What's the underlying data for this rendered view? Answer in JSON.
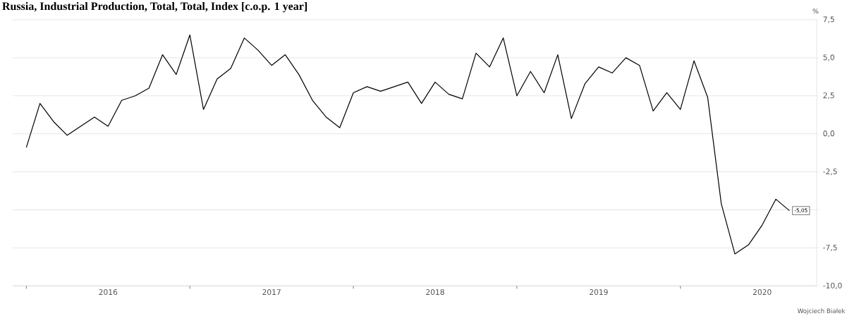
{
  "chart_data": {
    "type": "line",
    "title": "Russia, Industrial Production, Total, Total, Index [c.o.p. 1 year]",
    "ylabel": "%",
    "x": [
      "2016-01",
      "2016-02",
      "2016-03",
      "2016-04",
      "2016-05",
      "2016-06",
      "2016-07",
      "2016-08",
      "2016-09",
      "2016-10",
      "2016-11",
      "2016-12",
      "2017-01",
      "2017-02",
      "2017-03",
      "2017-04",
      "2017-05",
      "2017-06",
      "2017-07",
      "2017-08",
      "2017-09",
      "2017-10",
      "2017-11",
      "2017-12",
      "2018-01",
      "2018-02",
      "2018-03",
      "2018-04",
      "2018-05",
      "2018-06",
      "2018-07",
      "2018-08",
      "2018-09",
      "2018-10",
      "2018-11",
      "2018-12",
      "2019-01",
      "2019-02",
      "2019-03",
      "2019-04",
      "2019-05",
      "2019-06",
      "2019-07",
      "2019-08",
      "2019-09",
      "2019-10",
      "2019-11",
      "2019-12",
      "2020-01",
      "2020-02",
      "2020-03",
      "2020-04",
      "2020-05",
      "2020-06",
      "2020-07",
      "2020-08",
      "2020-09"
    ],
    "series": [
      {
        "color": "#000000",
        "values": [
          -0.9,
          2.0,
          0.8,
          -0.1,
          0.5,
          1.1,
          0.5,
          2.2,
          2.5,
          3.0,
          5.2,
          3.9,
          6.5,
          1.6,
          3.6,
          4.3,
          6.3,
          5.5,
          4.5,
          5.2,
          3.9,
          2.2,
          1.1,
          0.4,
          2.7,
          3.1,
          2.8,
          3.1,
          3.4,
          2.0,
          3.4,
          2.6,
          2.3,
          5.3,
          4.4,
          6.3,
          2.5,
          4.1,
          2.7,
          5.2,
          1.0,
          3.3,
          4.4,
          4.0,
          5.0,
          4.5,
          1.5,
          2.7,
          1.6,
          4.8,
          2.4,
          -4.6,
          -7.9,
          -7.3,
          -6.0,
          -4.3,
          -5.05
        ],
        "value_labels": [
          null,
          null,
          null,
          null,
          null,
          null,
          null,
          null,
          null,
          null,
          null,
          null,
          null,
          null,
          null,
          null,
          null,
          null,
          null,
          null,
          null,
          null,
          null,
          null,
          null,
          null,
          null,
          null,
          null,
          null,
          null,
          null,
          null,
          null,
          null,
          null,
          null,
          null,
          null,
          null,
          null,
          null,
          null,
          null,
          null,
          null,
          null,
          null,
          null,
          null,
          null,
          null,
          null,
          null,
          null,
          null,
          "-5,05"
        ]
      }
    ],
    "xlim": [
      "2015-12",
      "2020-11"
    ],
    "xticks": [
      {
        "value": "2016-01",
        "label": null
      },
      {
        "value": "2016-07",
        "label": "2016"
      },
      {
        "value": "2017-01",
        "label": null
      },
      {
        "value": "2017-07",
        "label": "2017"
      },
      {
        "value": "2018-01",
        "label": null
      },
      {
        "value": "2018-07",
        "label": "2018"
      },
      {
        "value": "2019-01",
        "label": null
      },
      {
        "value": "2019-07",
        "label": "2019"
      },
      {
        "value": "2020-01",
        "label": null
      },
      {
        "value": "2020-07",
        "label": "2020"
      }
    ],
    "ylim": [
      -10,
      7.5
    ],
    "yticks": [
      {
        "value": -10,
        "label": "-10,0"
      },
      {
        "value": -7.5,
        "label": "-7,5"
      },
      {
        "value": -5,
        "label": null
      },
      {
        "value": -2.5,
        "label": "-2,5"
      },
      {
        "value": 0,
        "label": "0,0"
      },
      {
        "value": 2.5,
        "label": "2,5"
      },
      {
        "value": 5,
        "label": "5,0"
      },
      {
        "value": 7.5,
        "label": "7,5"
      }
    ],
    "grid": "y",
    "marker": "none",
    "line_style": "solid",
    "annotations": [
      "Wojciech Białek"
    ]
  }
}
